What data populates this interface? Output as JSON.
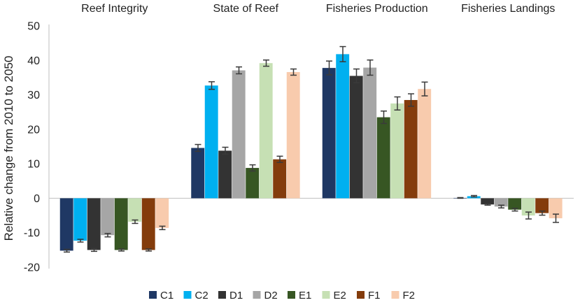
{
  "chart_data": {
    "type": "bar",
    "title": "",
    "xlabel": "",
    "ylabel": "Relative change from 2010 to 2050",
    "ylim": [
      -20,
      50
    ],
    "yticks": [
      -20,
      -10,
      0,
      10,
      20,
      30,
      40,
      50
    ],
    "categories": [
      "Reef Integrity",
      "State of Reef",
      "Fisheries Production",
      "Fisheries Landings"
    ],
    "legend_position": "bottom",
    "grid": false,
    "series": [
      {
        "name": "C1",
        "color": "#1f3864",
        "values": [
          -15.2,
          14.6,
          37.8,
          0.1
        ],
        "errors": [
          0.4,
          1.0,
          2.0,
          0.1
        ]
      },
      {
        "name": "C2",
        "color": "#00b0f0",
        "values": [
          -12.3,
          32.7,
          41.8,
          0.6
        ],
        "errors": [
          0.4,
          1.1,
          2.2,
          0.2
        ]
      },
      {
        "name": "D1",
        "color": "#333333",
        "values": [
          -15.0,
          13.8,
          35.5,
          -1.8
        ],
        "errors": [
          0.4,
          1.0,
          2.0,
          0.2
        ]
      },
      {
        "name": "D2",
        "color": "#a6a6a6",
        "values": [
          -10.7,
          37.1,
          37.9,
          -2.4
        ],
        "errors": [
          0.5,
          1.0,
          2.2,
          0.4
        ]
      },
      {
        "name": "E1",
        "color": "#375623",
        "values": [
          -15.0,
          8.8,
          23.5,
          -3.3
        ],
        "errors": [
          0.3,
          0.9,
          1.8,
          0.4
        ]
      },
      {
        "name": "E2",
        "color": "#c6e0b4",
        "values": [
          -6.8,
          39.2,
          27.5,
          -5.0
        ],
        "errors": [
          0.5,
          0.9,
          1.9,
          1.0
        ]
      },
      {
        "name": "F1",
        "color": "#843c0c",
        "values": [
          -15.0,
          11.3,
          28.5,
          -4.3
        ],
        "errors": [
          0.3,
          0.9,
          1.8,
          0.6
        ]
      },
      {
        "name": "F2",
        "color": "#f8cbad",
        "values": [
          -8.6,
          36.6,
          31.7,
          -5.8
        ],
        "errors": [
          0.5,
          0.9,
          2.0,
          1.2
        ]
      }
    ]
  }
}
